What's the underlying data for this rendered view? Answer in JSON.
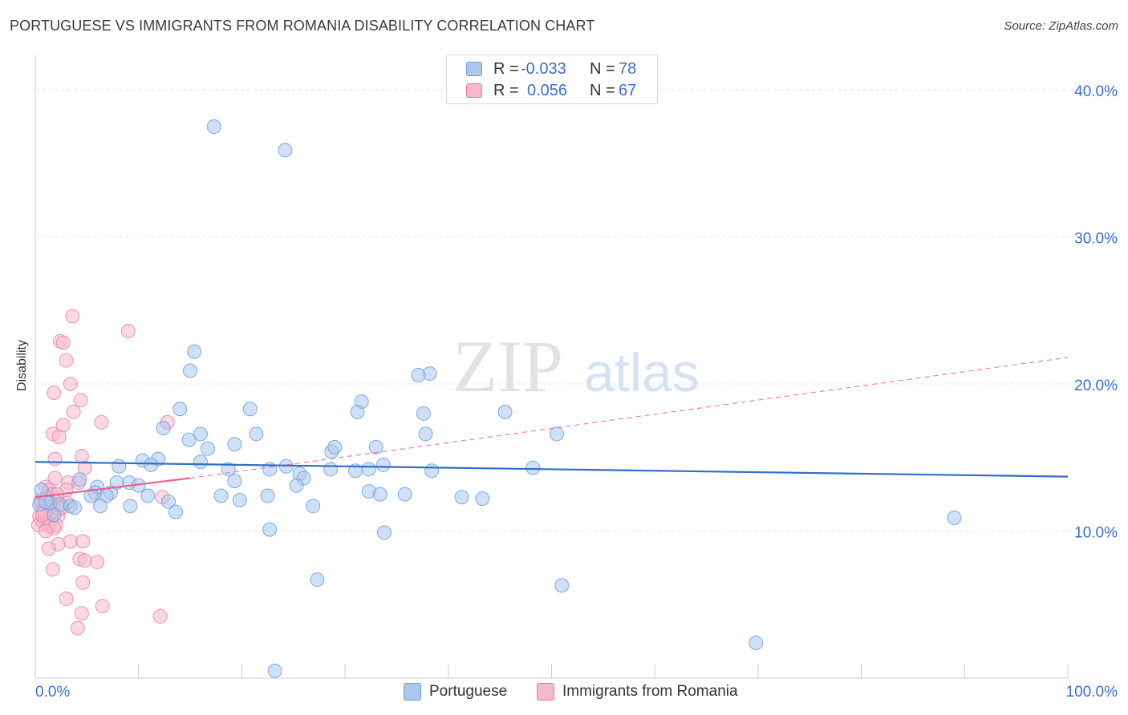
{
  "header": {
    "title": "PORTUGUESE VS IMMIGRANTS FROM ROMANIA DISABILITY CORRELATION CHART",
    "source": "Source: ZipAtlas.com"
  },
  "watermark": {
    "zip": "ZIP",
    "atlas": "atlas"
  },
  "legend": {
    "r_label": "R =",
    "n_label": "N =",
    "rows": [
      {
        "r": "-0.033",
        "n": "78"
      },
      {
        "r": "0.056",
        "n": "67"
      }
    ]
  },
  "colors": {
    "blue_fill": "#aac7ee",
    "blue_stroke": "#6a9fde",
    "blue_line": "#2f6fcd",
    "pink_fill": "#f7b8cc",
    "pink_stroke": "#e77fa3",
    "pink_line": "#e8608e",
    "axis_text": "#3b6fd0"
  },
  "chart_data": {
    "type": "scatter",
    "title": "PORTUGUESE VS IMMIGRANTS FROM ROMANIA DISABILITY CORRELATION CHART",
    "xlabel": "",
    "ylabel": "Disability",
    "xlim": [
      0,
      100
    ],
    "ylim": [
      0,
      42.4
    ],
    "x_tick_labels": [
      "0.0%",
      "100.0%"
    ],
    "y_ticks": [
      10,
      20,
      30,
      40
    ],
    "y_tick_labels": [
      "10.0%",
      "20.0%",
      "30.0%",
      "40.0%"
    ],
    "grid": true,
    "series": [
      {
        "name": "Portuguese",
        "color": "blue",
        "R": -0.033,
        "N": 78,
        "trend": {
          "x0": 0,
          "y0": 14.7,
          "x1": 100,
          "y1": 13.7
        },
        "points": [
          [
            17.3,
            37.5
          ],
          [
            24.2,
            35.9
          ],
          [
            15.4,
            22.2
          ],
          [
            38.2,
            20.7
          ],
          [
            37.1,
            20.6
          ],
          [
            15.0,
            20.9
          ],
          [
            14.0,
            18.3
          ],
          [
            20.8,
            18.3
          ],
          [
            31.6,
            18.8
          ],
          [
            31.2,
            18.1
          ],
          [
            37.6,
            18.0
          ],
          [
            45.5,
            18.1
          ],
          [
            12.4,
            17.0
          ],
          [
            37.8,
            16.6
          ],
          [
            50.5,
            16.6
          ],
          [
            16.0,
            16.6
          ],
          [
            21.4,
            16.6
          ],
          [
            14.9,
            16.2
          ],
          [
            16.7,
            15.6
          ],
          [
            19.3,
            15.9
          ],
          [
            28.7,
            15.4
          ],
          [
            29.0,
            15.7
          ],
          [
            33.0,
            15.7
          ],
          [
            10.4,
            14.8
          ],
          [
            11.9,
            14.9
          ],
          [
            11.2,
            14.5
          ],
          [
            8.1,
            14.4
          ],
          [
            16.0,
            14.7
          ],
          [
            18.7,
            14.2
          ],
          [
            22.7,
            14.2
          ],
          [
            24.3,
            14.4
          ],
          [
            25.6,
            13.9
          ],
          [
            26.0,
            13.6
          ],
          [
            28.6,
            14.2
          ],
          [
            31.0,
            14.1
          ],
          [
            32.3,
            14.2
          ],
          [
            33.7,
            14.5
          ],
          [
            38.4,
            14.1
          ],
          [
            48.2,
            14.3
          ],
          [
            4.3,
            13.5
          ],
          [
            6.0,
            13.0
          ],
          [
            7.9,
            13.3
          ],
          [
            9.1,
            13.3
          ],
          [
            10.0,
            13.1
          ],
          [
            19.3,
            13.4
          ],
          [
            25.3,
            13.1
          ],
          [
            32.3,
            12.7
          ],
          [
            5.8,
            12.6
          ],
          [
            7.3,
            12.6
          ],
          [
            5.4,
            12.4
          ],
          [
            6.9,
            12.4
          ],
          [
            10.9,
            12.4
          ],
          [
            12.9,
            12.0
          ],
          [
            18.0,
            12.4
          ],
          [
            19.8,
            12.1
          ],
          [
            22.5,
            12.4
          ],
          [
            33.4,
            12.5
          ],
          [
            35.8,
            12.5
          ],
          [
            41.3,
            12.3
          ],
          [
            43.3,
            12.2
          ],
          [
            1.4,
            11.9
          ],
          [
            2.4,
            11.8
          ],
          [
            3.4,
            11.7
          ],
          [
            3.8,
            11.6
          ],
          [
            6.3,
            11.7
          ],
          [
            9.2,
            11.7
          ],
          [
            13.6,
            11.3
          ],
          [
            26.9,
            11.7
          ],
          [
            1.8,
            11.1
          ],
          [
            0.4,
            11.8
          ],
          [
            1.0,
            12.0
          ],
          [
            0.6,
            12.8
          ],
          [
            22.7,
            10.1
          ],
          [
            33.8,
            9.9
          ],
          [
            89.0,
            10.9
          ],
          [
            27.3,
            6.7
          ],
          [
            51.0,
            6.3
          ],
          [
            69.8,
            2.4
          ],
          [
            23.2,
            0.5
          ]
        ]
      },
      {
        "name": "Immigrants from Romania",
        "color": "pink",
        "R": 0.056,
        "N": 67,
        "trend": {
          "x0": 0,
          "y0": 12.3,
          "x1": 15,
          "y1": 13.6,
          "dashed_to": {
            "x": 100,
            "y": 21.8
          }
        },
        "points": [
          [
            3.6,
            24.6
          ],
          [
            9.0,
            23.6
          ],
          [
            2.4,
            22.9
          ],
          [
            2.7,
            22.8
          ],
          [
            3.0,
            21.6
          ],
          [
            3.4,
            20.0
          ],
          [
            1.8,
            19.4
          ],
          [
            4.4,
            18.9
          ],
          [
            3.7,
            18.1
          ],
          [
            12.8,
            17.4
          ],
          [
            6.4,
            17.4
          ],
          [
            2.7,
            17.2
          ],
          [
            1.7,
            16.6
          ],
          [
            2.3,
            16.4
          ],
          [
            1.9,
            14.9
          ],
          [
            4.5,
            15.1
          ],
          [
            4.8,
            14.3
          ],
          [
            1.9,
            13.6
          ],
          [
            3.2,
            13.3
          ],
          [
            4.2,
            13.3
          ],
          [
            1.0,
            13.0
          ],
          [
            1.4,
            12.8
          ],
          [
            3.0,
            12.8
          ],
          [
            1.6,
            12.5
          ],
          [
            2.1,
            12.5
          ],
          [
            12.3,
            12.3
          ],
          [
            1.3,
            12.0
          ],
          [
            2.0,
            12.0
          ],
          [
            0.6,
            11.9
          ],
          [
            3.1,
            11.9
          ],
          [
            1.6,
            11.6
          ],
          [
            2.4,
            11.5
          ],
          [
            0.8,
            11.4
          ],
          [
            1.7,
            11.3
          ],
          [
            1.2,
            11.0
          ],
          [
            2.2,
            11.0
          ],
          [
            0.4,
            11.0
          ],
          [
            0.9,
            10.8
          ],
          [
            1.5,
            10.8
          ],
          [
            0.6,
            10.7
          ],
          [
            1.1,
            10.6
          ],
          [
            0.8,
            10.5
          ],
          [
            0.3,
            10.4
          ],
          [
            1.3,
            10.3
          ],
          [
            2.0,
            10.4
          ],
          [
            1.8,
            10.2
          ],
          [
            1.0,
            10.0
          ],
          [
            3.4,
            9.3
          ],
          [
            4.6,
            9.3
          ],
          [
            2.2,
            9.1
          ],
          [
            1.3,
            8.8
          ],
          [
            4.3,
            8.1
          ],
          [
            4.8,
            8.0
          ],
          [
            6.0,
            7.9
          ],
          [
            1.7,
            7.4
          ],
          [
            4.6,
            6.5
          ],
          [
            3.0,
            5.4
          ],
          [
            6.5,
            4.9
          ],
          [
            4.5,
            4.4
          ],
          [
            12.1,
            4.2
          ],
          [
            4.1,
            3.4
          ],
          [
            0.5,
            12.1
          ],
          [
            1.4,
            11.7
          ],
          [
            0.9,
            11.3
          ],
          [
            2.6,
            11.6
          ],
          [
            1.1,
            12.3
          ],
          [
            0.7,
            11.1
          ]
        ]
      }
    ]
  },
  "bottom_legend": [
    {
      "label": "Portuguese"
    },
    {
      "label": "Immigrants from Romania"
    }
  ]
}
